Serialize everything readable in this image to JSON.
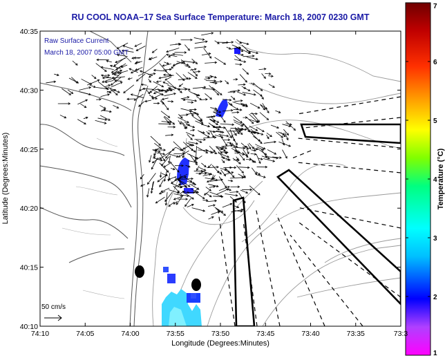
{
  "title": "RU COOL  NOAA–17  Sea Surface Temperature:  March 18, 2007 0230 GMT",
  "legend": {
    "line1": "Raw Surface Current",
    "line2": "March 18, 2007 05:00 GMT",
    "scale_label": "50 cm/s"
  },
  "axes": {
    "xlabel": "Longitude (Degrees:Minutes)",
    "ylabel": "Latitude (Degrees:Minutes)",
    "xticks": [
      "74:10",
      "74:05",
      "74:00",
      "73:55",
      "73:50",
      "73:45",
      "73:40",
      "73:35",
      "73:3"
    ],
    "yticks": [
      "40:35",
      "40:30",
      "40:25",
      "40:20",
      "40:15",
      "40:10"
    ]
  },
  "colorbar": {
    "label": "Temperature (°C)",
    "ticks": [
      "7",
      "6",
      "5",
      "4",
      "3",
      "2",
      "1"
    ],
    "range": [
      1,
      7
    ],
    "colors": [
      "#ff00ff",
      "#8a2be2",
      "#0000ff",
      "#00bfff",
      "#00ffff",
      "#00ff80",
      "#80ff00",
      "#ffff00",
      "#ffa500",
      "#ff4500",
      "#ff0000",
      "#b00000",
      "#700000"
    ]
  },
  "colors": {
    "title": "#1a1aa6",
    "land_outline": "#000000",
    "bathymetry": "#999999",
    "arrows": "#000000"
  }
}
